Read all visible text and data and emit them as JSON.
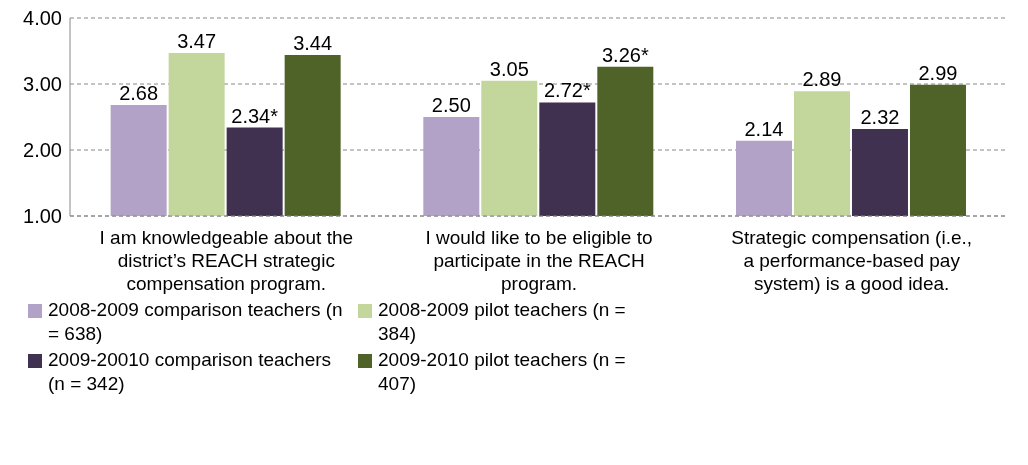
{
  "chart_data": {
    "type": "bar",
    "categories": [
      "I am knowledgeable about the district’s REACH strategic compensation program.",
      "I would like to be eligible to participate in the REACH program.",
      "Strategic compensation (i.e., a performance-based pay system) is a good idea."
    ],
    "series": [
      {
        "name": "2008-2009 comparison teachers (n = 638)",
        "color": "#b3a2c7",
        "values": [
          2.68,
          2.5,
          2.14
        ],
        "value_labels": [
          "2.68",
          "2.50",
          "2.14"
        ]
      },
      {
        "name": "2008-2009 pilot teachers (n = 384)",
        "color": "#c3d69b",
        "values": [
          3.47,
          3.05,
          2.89
        ],
        "value_labels": [
          "3.47",
          "3.05",
          "2.89"
        ]
      },
      {
        "name": "2009-20010 comparison teachers (n = 342)",
        "color": "#403151",
        "values": [
          2.34,
          2.72,
          2.32
        ],
        "value_labels": [
          "2.34*",
          "2.72*",
          "2.32"
        ]
      },
      {
        "name": "2009-2010 pilot teachers (n = 407)",
        "color": "#4f6228",
        "values": [
          3.44,
          3.26,
          2.99
        ],
        "value_labels": [
          "3.44",
          "3.26*",
          "2.99"
        ]
      }
    ],
    "ylim": [
      1,
      4
    ],
    "yticks": [
      {
        "value": 1,
        "label": "1.00"
      },
      {
        "value": 2,
        "label": "2.00"
      },
      {
        "value": 3,
        "label": "3.00"
      },
      {
        "value": 4,
        "label": "4.00"
      }
    ],
    "grid": "y",
    "legend": "bottom left"
  }
}
